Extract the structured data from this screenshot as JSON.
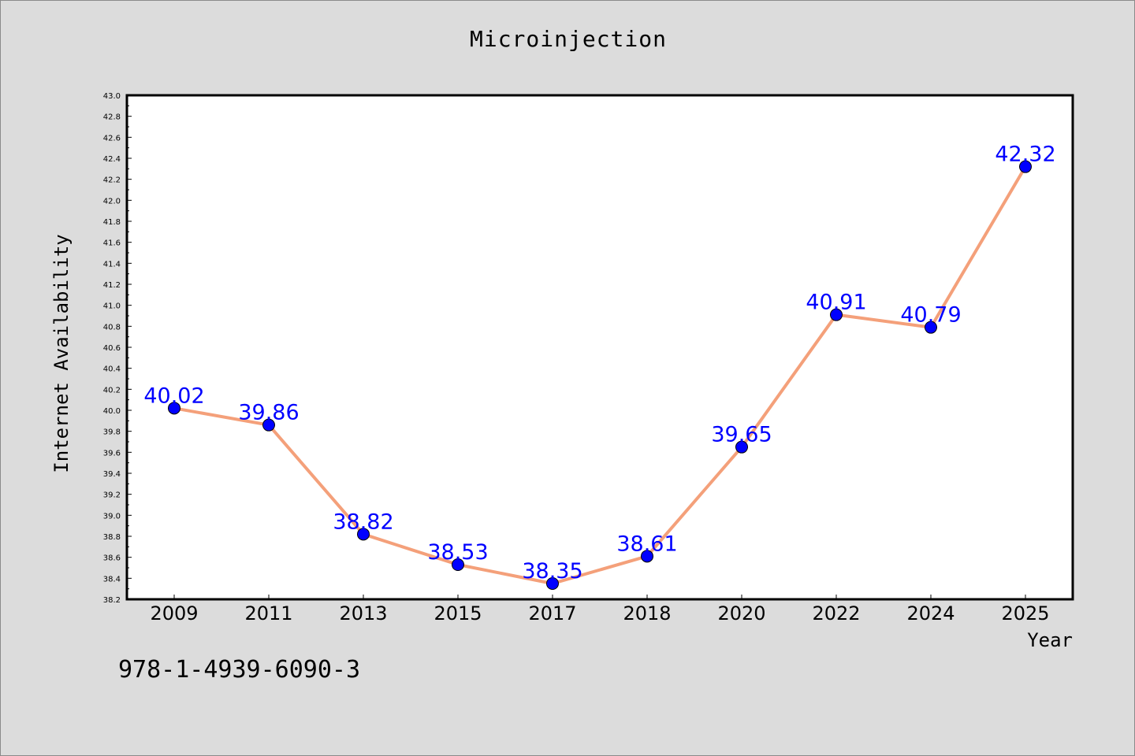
{
  "chart_data": {
    "type": "line",
    "title": "Microinjection",
    "xlabel": "Year",
    "ylabel": "Internet Availability",
    "categories": [
      "2009",
      "2011",
      "2013",
      "2015",
      "2017",
      "2018",
      "2020",
      "2022",
      "2024",
      "2025"
    ],
    "series": [
      {
        "values": [
          40.02,
          39.86,
          38.82,
          38.53,
          38.35,
          38.61,
          39.65,
          40.91,
          40.79,
          42.32
        ]
      }
    ],
    "data_labels": [
      "40.02",
      "39.86",
      "38.82",
      "38.53",
      "38.35",
      "38.61",
      "39.65",
      "40.91",
      "40.79",
      "42.32"
    ],
    "ylim": [
      38.2,
      43.0
    ],
    "y_ticks": [
      "38.2",
      "38.4",
      "38.6",
      "38.8",
      "39.0",
      "39.2",
      "39.4",
      "39.6",
      "39.8",
      "40.0",
      "40.2",
      "40.4",
      "40.6",
      "40.8",
      "41.0",
      "41.2",
      "41.4",
      "41.6",
      "41.8",
      "42.0",
      "42.2",
      "42.4",
      "42.6",
      "42.8",
      "43.0"
    ],
    "grid": false,
    "legend": "none",
    "colors": {
      "line": "#f4a07a",
      "marker": "#0000ff",
      "label": "#0000ff",
      "plot_bg": "#ffffff",
      "page_bg": "#dcdcdc"
    }
  },
  "footnote": "978-1-4939-6090-3"
}
